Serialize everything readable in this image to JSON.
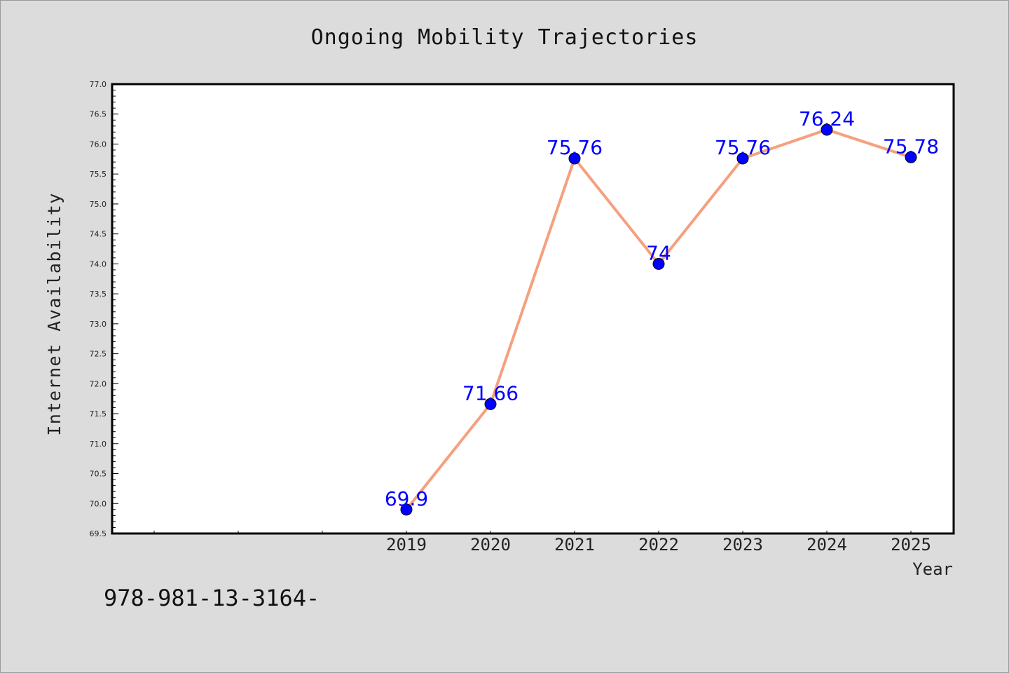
{
  "chart_data": {
    "type": "line",
    "title": "Ongoing Mobility Trajectories",
    "xlabel": "Year",
    "ylabel": "Internet Availability",
    "categories": [
      "2019",
      "2020",
      "2021",
      "2022",
      "2023",
      "2024",
      "2025"
    ],
    "series": [
      {
        "values": [
          69.9,
          71.66,
          75.76,
          74,
          75.76,
          76.24,
          75.78
        ],
        "data_labels": [
          "69.9",
          "71.66",
          "75.76",
          "74",
          "75.76",
          "76.24",
          "75.78"
        ],
        "line_color": "#f5a07e",
        "marker_color": "#0000ff"
      }
    ],
    "ylim": [
      69.5,
      77.0
    ],
    "yticks": [
      "69.5",
      "70.0",
      "70.5",
      "71.0",
      "71.5",
      "72.0",
      "72.5",
      "73.0",
      "73.5",
      "74.0",
      "74.5",
      "75.0",
      "75.5",
      "76.0",
      "76.5",
      "77.0"
    ],
    "grid": false,
    "legend": "none"
  },
  "footer": {
    "code": "978-981-13-3164-"
  },
  "colors": {
    "background": "#dcdcdc",
    "plot_background": "#ffffff",
    "label_color": "#0000ff"
  }
}
